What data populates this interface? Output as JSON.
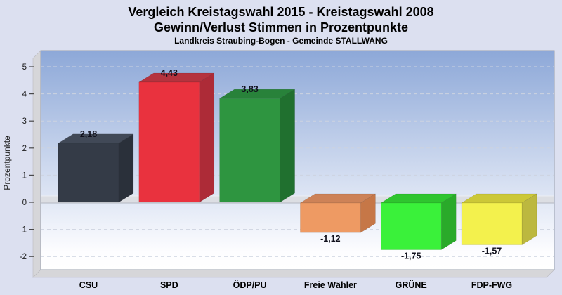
{
  "title": {
    "line1": "Vergleich Kreistagswahl 2015 - Kreistagswahl 2008",
    "line2": "Gewinn/Verlust Stimmen in Prozentpunkte",
    "subtitle": "Landkreis Straubing-Bogen - Gemeinde STALLWANG"
  },
  "y_axis": {
    "label": "Prozentpunkte",
    "ticks": [
      5,
      4,
      3,
      2,
      1,
      0,
      -1,
      -2
    ]
  },
  "chart_data": {
    "type": "bar",
    "title": "Vergleich Kreistagswahl 2015 - Kreistagswahl 2008 / Gewinn/Verlust Stimmen in Prozentpunkte",
    "subtitle": "Landkreis Straubing-Bogen - Gemeinde STALLWANG",
    "categories": [
      "CSU",
      "SPD",
      "ÖDP/PU",
      "Freie Wähler",
      "GRÜNE",
      "FDP-FWG"
    ],
    "slugs": [
      "csu",
      "spd",
      "oedp-pu",
      "freie-waehler",
      "gruene",
      "fdp-fwg"
    ],
    "values": [
      2.18,
      4.43,
      3.83,
      -1.12,
      -1.75,
      -1.57
    ],
    "value_labels": [
      "2,18",
      "4,43",
      "3,83",
      "-1,12",
      "-1,75",
      "-1,57"
    ],
    "bar_colors": [
      {
        "front": "#343b47",
        "top": "#414957",
        "side": "#2a303a"
      },
      {
        "front": "#e9323e",
        "top": "#b5333e",
        "side": "#ad2b37"
      },
      {
        "front": "#2e9540",
        "top": "#28823a",
        "side": "#20702f"
      },
      {
        "front": "#ee9a63",
        "top": "#cd8257",
        "side": "#c67747"
      },
      {
        "front": "#3af13a",
        "top": "#2fc52f",
        "side": "#2aaa2a"
      },
      {
        "front": "#f3f14d",
        "top": "#ccc837",
        "side": "#bcb83f"
      }
    ],
    "xlabel": "",
    "ylabel": "Prozentpunkte",
    "ylim": [
      -2.55,
      5.6
    ],
    "grid": true,
    "grid_style": "dashed",
    "legend": false,
    "style_3d": true
  },
  "colors": {
    "page_bg": "#dce0f0",
    "plot_gradient_top": "#8da8d8",
    "plot_gradient_bottom": "#fdfdff",
    "plot_border": "#99a0ae",
    "wall": "#d6d6d9",
    "wall_border": "#b9b9bf",
    "zero_band": "#dcdee3",
    "zero_band_edge": "#b3b7c0",
    "gridline": "#cdd3e0",
    "tick": "#4a4a4a"
  }
}
